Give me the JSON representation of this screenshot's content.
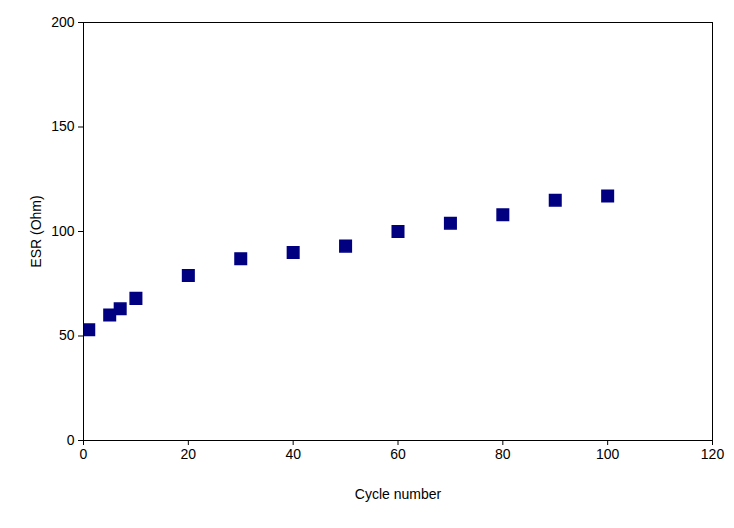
{
  "chart_data": {
    "type": "scatter",
    "x_label": "Cycle number",
    "y_label": "ESR (Ohm)",
    "x": [
      1,
      5,
      7,
      10,
      20,
      30,
      40,
      50,
      60,
      70,
      80,
      90,
      100
    ],
    "values": [
      53,
      60,
      63,
      68,
      79,
      87,
      90,
      93,
      100,
      104,
      108,
      115,
      117
    ],
    "color": "#000080",
    "marker": "square",
    "xlim": [
      0,
      120
    ],
    "xticks": [
      0,
      20,
      40,
      60,
      80,
      100,
      120
    ],
    "ylim": [
      0,
      200
    ],
    "yticks": [
      0,
      50,
      100,
      150,
      200
    ],
    "grid": false
  }
}
